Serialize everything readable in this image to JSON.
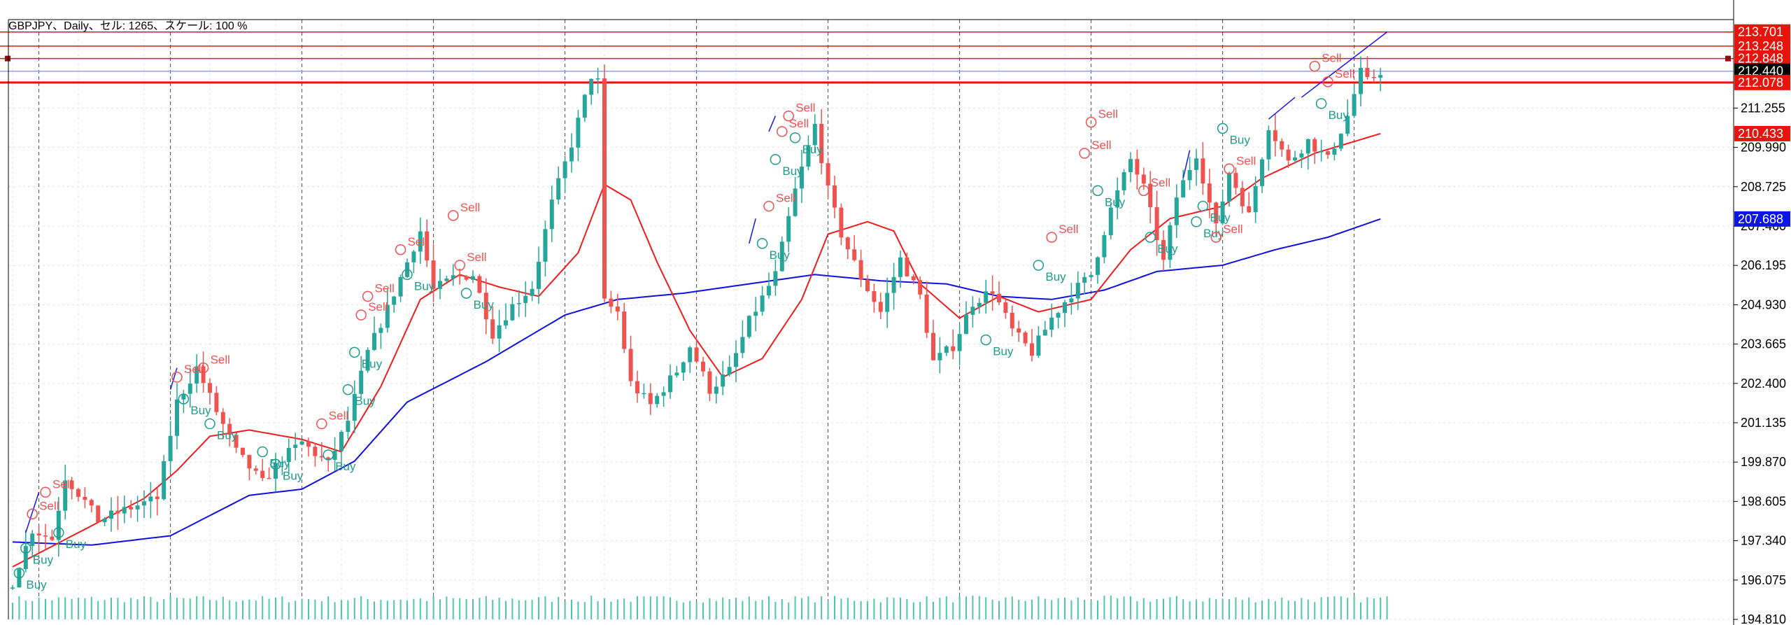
{
  "header": {
    "title": "GBPJPY、Daily、セル: 1265、スケール: 100 %"
  },
  "chart_data": {
    "type": "candlestick",
    "symbol": "GBPJPY",
    "timeframe": "Daily",
    "ylim": [
      194.81,
      214.1
    ],
    "y_ticks": [
      "213.701",
      "213.248",
      "212.848",
      "212.440",
      "212.078",
      "211.255",
      "209.990",
      "208.725",
      "207.460",
      "206.195",
      "204.930",
      "203.665",
      "202.400",
      "201.135",
      "199.870",
      "198.605",
      "197.340",
      "196.075",
      "194.810"
    ],
    "grid": true,
    "n_bars": 210,
    "period_separators": [
      4,
      24,
      44,
      64,
      84,
      104,
      124,
      144,
      164,
      184,
      204
    ],
    "close_anchors": [
      [
        0,
        196.0
      ],
      [
        3,
        197.7
      ],
      [
        6,
        197.4
      ],
      [
        8,
        199.4
      ],
      [
        11,
        198.6
      ],
      [
        13,
        198.0
      ],
      [
        18,
        198.4
      ],
      [
        22,
        198.7
      ],
      [
        25,
        201.8
      ],
      [
        28,
        202.9
      ],
      [
        31,
        201.5
      ],
      [
        34,
        200.2
      ],
      [
        38,
        199.2
      ],
      [
        41,
        200.0
      ],
      [
        44,
        200.5
      ],
      [
        48,
        199.8
      ],
      [
        51,
        201.2
      ],
      [
        54,
        203.4
      ],
      [
        57,
        204.8
      ],
      [
        60,
        206.3
      ],
      [
        62,
        207.3
      ],
      [
        64,
        205.4
      ],
      [
        67,
        205.8
      ],
      [
        70,
        205.9
      ],
      [
        73,
        204.0
      ],
      [
        76,
        204.9
      ],
      [
        79,
        205.5
      ],
      [
        82,
        208.2
      ],
      [
        85,
        210.1
      ],
      [
        88,
        212.3
      ],
      [
        89,
        212.1
      ],
      [
        90,
        205.0
      ],
      [
        92,
        204.7
      ],
      [
        94,
        202.4
      ],
      [
        97,
        201.7
      ],
      [
        101,
        202.8
      ],
      [
        103,
        203.6
      ],
      [
        106,
        202.2
      ],
      [
        109,
        202.8
      ],
      [
        112,
        204.4
      ],
      [
        116,
        205.9
      ],
      [
        119,
        208.6
      ],
      [
        122,
        210.7
      ],
      [
        124,
        208.6
      ],
      [
        126,
        207.2
      ],
      [
        129,
        205.8
      ],
      [
        132,
        204.7
      ],
      [
        135,
        206.4
      ],
      [
        138,
        205.2
      ],
      [
        140,
        203.1
      ],
      [
        143,
        203.6
      ],
      [
        146,
        205.0
      ],
      [
        149,
        205.4
      ],
      [
        152,
        204.1
      ],
      [
        155,
        203.4
      ],
      [
        158,
        204.5
      ],
      [
        161,
        205.3
      ],
      [
        164,
        205.9
      ],
      [
        167,
        208.0
      ],
      [
        170,
        209.6
      ],
      [
        172,
        208.7
      ],
      [
        175,
        206.3
      ],
      [
        177,
        208.4
      ],
      [
        180,
        209.8
      ],
      [
        183,
        207.4
      ],
      [
        185,
        209.2
      ],
      [
        188,
        207.8
      ],
      [
        191,
        210.7
      ],
      [
        194,
        209.5
      ],
      [
        197,
        210.2
      ],
      [
        200,
        209.6
      ],
      [
        203,
        211.0
      ],
      [
        205,
        212.4
      ],
      [
        206,
        212.1
      ],
      [
        208,
        212.44
      ]
    ],
    "ma_fast": [
      [
        0,
        196.5
      ],
      [
        10,
        197.6
      ],
      [
        20,
        198.7
      ],
      [
        25,
        199.6
      ],
      [
        30,
        200.7
      ],
      [
        36,
        200.9
      ],
      [
        44,
        200.6
      ],
      [
        50,
        200.2
      ],
      [
        56,
        202.3
      ],
      [
        62,
        205.1
      ],
      [
        68,
        205.9
      ],
      [
        74,
        205.5
      ],
      [
        80,
        205.2
      ],
      [
        86,
        206.6
      ],
      [
        90,
        208.8
      ],
      [
        94,
        208.3
      ],
      [
        98,
        206.3
      ],
      [
        103,
        204.1
      ],
      [
        108,
        202.6
      ],
      [
        114,
        203.2
      ],
      [
        120,
        205.1
      ],
      [
        124,
        207.2
      ],
      [
        130,
        207.6
      ],
      [
        134,
        207.3
      ],
      [
        138,
        205.6
      ],
      [
        144,
        204.5
      ],
      [
        150,
        205.2
      ],
      [
        156,
        204.7
      ],
      [
        164,
        205.1
      ],
      [
        170,
        206.7
      ],
      [
        176,
        207.7
      ],
      [
        184,
        208.1
      ],
      [
        190,
        209.0
      ],
      [
        198,
        209.8
      ],
      [
        208,
        210.433
      ]
    ],
    "ma_slow": [
      [
        0,
        197.3
      ],
      [
        12,
        197.2
      ],
      [
        24,
        197.5
      ],
      [
        36,
        198.8
      ],
      [
        44,
        199.0
      ],
      [
        52,
        199.9
      ],
      [
        60,
        201.8
      ],
      [
        72,
        203.1
      ],
      [
        84,
        204.6
      ],
      [
        92,
        205.1
      ],
      [
        102,
        205.3
      ],
      [
        112,
        205.6
      ],
      [
        122,
        205.9
      ],
      [
        132,
        205.7
      ],
      [
        142,
        205.6
      ],
      [
        150,
        205.2
      ],
      [
        158,
        205.1
      ],
      [
        166,
        205.4
      ],
      [
        174,
        206.0
      ],
      [
        184,
        206.2
      ],
      [
        192,
        206.7
      ],
      [
        200,
        207.1
      ],
      [
        208,
        207.688
      ]
    ],
    "horizontal_levels": [
      {
        "price": 213.701,
        "color": "#e8140c",
        "tag": "213.701",
        "tag_color": "#e8140c"
      },
      {
        "price": 213.248,
        "color": "#e8140c",
        "tag": "213.248",
        "tag_color": "#e8140c"
      },
      {
        "price": 212.848,
        "color": "#e8140c",
        "tag": "212.848",
        "tag_color": "#e8140c"
      },
      {
        "price": 212.44,
        "color": "#8fa6d6",
        "tag": "212.440",
        "tag_color": "#000000"
      },
      {
        "price": 212.078,
        "color": "#e8140c",
        "tag": "212.078",
        "tag_color": "#e8140c"
      }
    ],
    "ma_tags": [
      {
        "price": 210.433,
        "tag": "210.433",
        "color": "#e8140c"
      },
      {
        "price": 207.688,
        "tag": "207.688",
        "color": "#0a14e6"
      }
    ],
    "trend_lines": [
      [
        [
          2,
          197.6
        ],
        [
          4,
          198.9
        ]
      ],
      [
        [
          24,
          202.2
        ],
        [
          25,
          202.9
        ]
      ],
      [
        [
          112,
          206.9
        ],
        [
          113,
          207.7
        ]
      ],
      [
        [
          115,
          210.5
        ],
        [
          116,
          211.0
        ]
      ],
      [
        [
          178,
          209.0
        ],
        [
          179,
          209.9
        ]
      ],
      [
        [
          191,
          210.9
        ],
        [
          195,
          211.6
        ]
      ],
      [
        [
          196,
          211.6
        ],
        [
          209,
          213.7
        ]
      ]
    ],
    "signals": [
      {
        "bar": 1,
        "price": 196.3,
        "label": "Buy",
        "kind": "buy"
      },
      {
        "bar": 2,
        "price": 197.1,
        "label": "Buy",
        "kind": "buy"
      },
      {
        "bar": 3,
        "price": 198.2,
        "label": "Sell",
        "kind": "sell"
      },
      {
        "bar": 5,
        "price": 198.9,
        "label": "Sell",
        "kind": "sell"
      },
      {
        "bar": 7,
        "price": 197.6,
        "label": "Buy",
        "kind": "buy"
      },
      {
        "bar": 25,
        "price": 202.6,
        "label": "Sell",
        "kind": "sell"
      },
      {
        "bar": 26,
        "price": 201.9,
        "label": "Buy",
        "kind": "buy"
      },
      {
        "bar": 29,
        "price": 202.9,
        "label": "Sell",
        "kind": "sell"
      },
      {
        "bar": 30,
        "price": 201.1,
        "label": "Buy",
        "kind": "buy"
      },
      {
        "bar": 38,
        "price": 200.2,
        "label": "Buy",
        "kind": "buy"
      },
      {
        "bar": 40,
        "price": 199.8,
        "label": "Buy",
        "kind": "buy"
      },
      {
        "bar": 47,
        "price": 201.1,
        "label": "Sell",
        "kind": "sell"
      },
      {
        "bar": 48,
        "price": 200.1,
        "label": "Buy",
        "kind": "buy"
      },
      {
        "bar": 51,
        "price": 202.2,
        "label": "Buy",
        "kind": "buy"
      },
      {
        "bar": 52,
        "price": 203.4,
        "label": "Buy",
        "kind": "buy"
      },
      {
        "bar": 53,
        "price": 204.6,
        "label": "Sell",
        "kind": "sell"
      },
      {
        "bar": 54,
        "price": 205.2,
        "label": "Sell",
        "kind": "sell"
      },
      {
        "bar": 59,
        "price": 206.7,
        "label": "Sell",
        "kind": "sell"
      },
      {
        "bar": 60,
        "price": 205.9,
        "label": "Buy",
        "kind": "buy"
      },
      {
        "bar": 67,
        "price": 207.8,
        "label": "Sell",
        "kind": "sell"
      },
      {
        "bar": 68,
        "price": 206.2,
        "label": "Sell",
        "kind": "sell"
      },
      {
        "bar": 69,
        "price": 205.3,
        "label": "Buy",
        "kind": "buy"
      },
      {
        "bar": 114,
        "price": 206.9,
        "label": "Buy",
        "kind": "buy"
      },
      {
        "bar": 115,
        "price": 208.1,
        "label": "Sell",
        "kind": "sell"
      },
      {
        "bar": 116,
        "price": 209.6,
        "label": "Buy",
        "kind": "buy"
      },
      {
        "bar": 117,
        "price": 210.5,
        "label": "Sell",
        "kind": "sell"
      },
      {
        "bar": 118,
        "price": 211.0,
        "label": "Sell",
        "kind": "sell"
      },
      {
        "bar": 119,
        "price": 210.3,
        "label": "Buy",
        "kind": "buy"
      },
      {
        "bar": 148,
        "price": 203.8,
        "label": "Buy",
        "kind": "buy"
      },
      {
        "bar": 156,
        "price": 206.2,
        "label": "Buy",
        "kind": "buy"
      },
      {
        "bar": 158,
        "price": 207.1,
        "label": "Sell",
        "kind": "sell"
      },
      {
        "bar": 163,
        "price": 209.8,
        "label": "Sell",
        "kind": "sell"
      },
      {
        "bar": 164,
        "price": 210.8,
        "label": "Sell",
        "kind": "sell"
      },
      {
        "bar": 165,
        "price": 208.6,
        "label": "Buy",
        "kind": "buy"
      },
      {
        "bar": 172,
        "price": 208.6,
        "label": "Sell",
        "kind": "sell"
      },
      {
        "bar": 173,
        "price": 207.1,
        "label": "Buy",
        "kind": "buy"
      },
      {
        "bar": 180,
        "price": 207.6,
        "label": "Buy",
        "kind": "buy"
      },
      {
        "bar": 181,
        "price": 208.1,
        "label": "Buy",
        "kind": "buy"
      },
      {
        "bar": 183,
        "price": 207.1,
        "label": "Sell",
        "kind": "sell"
      },
      {
        "bar": 184,
        "price": 210.6,
        "label": "Buy",
        "kind": "buy"
      },
      {
        "bar": 185,
        "price": 209.3,
        "label": "Sell",
        "kind": "sell"
      },
      {
        "bar": 198,
        "price": 212.6,
        "label": "Sell",
        "kind": "sell"
      },
      {
        "bar": 199,
        "price": 211.4,
        "label": "Buy",
        "kind": "buy"
      },
      {
        "bar": 200,
        "price": 212.1,
        "label": "Sell",
        "kind": "sell"
      }
    ]
  }
}
